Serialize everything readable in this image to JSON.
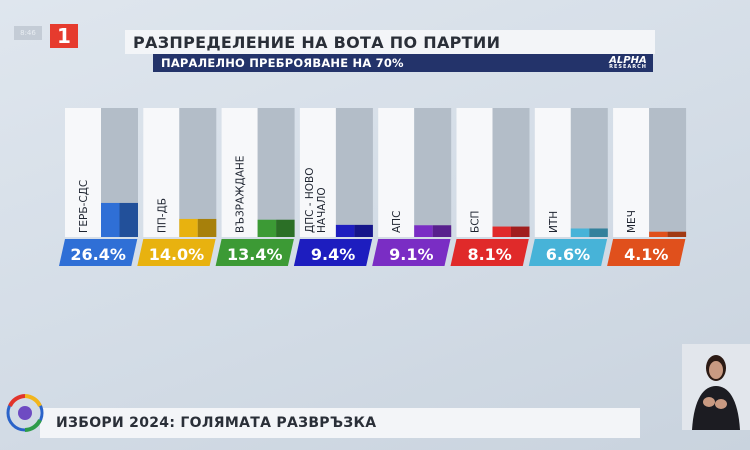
{
  "header": {
    "time": "8:46",
    "channel_logo": "1",
    "title": "РАЗПРЕДЕЛЕНИЕ НА ВОТА ПО ПАРТИИ",
    "subtitle": "ПАРАЛЕЛНО ПРЕБРОЯВАНЕ НА 70%",
    "agency": "ALPHA",
    "agency_sub": "RESEARCH"
  },
  "footer": {
    "text": "ИЗБОРИ 2024: ГОЛЯМАТА РАЗВРЪЗКА"
  },
  "icons": {
    "election_logo": "election-circle-logo",
    "signer": "sign-language-interpreter"
  },
  "chart_data": {
    "type": "bar",
    "title": "РАЗПРЕДЕЛЕНИЕ НА ВОТА ПО ПАРТИИ",
    "subtitle": "ПАРАЛЕЛНО ПРЕБРОЯВАНЕ НА 70%",
    "categories": [
      "ГЕРБ-СДС",
      "ПП-ДБ",
      "ВЪЗРАЖДАНЕ",
      "ДПС - НОВО НАЧАЛО",
      "АПС",
      "БСП",
      "ИТН",
      "МЕЧ"
    ],
    "category_lines": [
      [
        "ГЕРБ-СДС"
      ],
      [
        "ПП-ДБ"
      ],
      [
        "ВЪЗРАЖДАНЕ"
      ],
      [
        "ДПС - НОВО",
        "НАЧАЛО"
      ],
      [
        "АПС"
      ],
      [
        "БСП"
      ],
      [
        "ИТН"
      ],
      [
        "МЕЧ"
      ]
    ],
    "values": [
      26.4,
      14.0,
      13.4,
      9.4,
      9.1,
      8.1,
      6.6,
      4.1
    ],
    "value_labels": [
      "26.4%",
      "14.0%",
      "13.4%",
      "9.4%",
      "9.1%",
      "8.1%",
      "6.6%",
      "4.1%"
    ],
    "unit": "%",
    "ylim": [
      0,
      100
    ],
    "colors": [
      "#2f6fd6",
      "#e8b20f",
      "#3c9a35",
      "#1d1dbf",
      "#7a2dc4",
      "#e02a2a",
      "#47b3d8",
      "#e0501c"
    ],
    "grid": false,
    "legend": "none"
  }
}
